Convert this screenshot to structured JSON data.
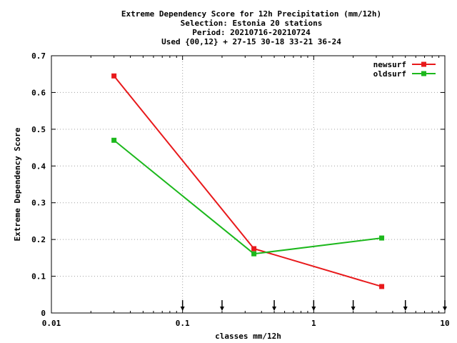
{
  "chart_data": {
    "type": "line",
    "title": [
      "Extreme Dependency Score  for 12h Precipitation (mm/12h)",
      "Selection: Estonia     20 stations",
      "Period: 20210716-20210724",
      "Used {00,12} + 27-15 30-18 33-21 36-24"
    ],
    "xlabel": "classes mm/12h",
    "ylabel": "Extreme Dependency Score",
    "x_scale": "log",
    "xlim": [
      0.01,
      10
    ],
    "ylim": [
      0,
      0.7
    ],
    "x_ticks": [
      0.01,
      0.1,
      1,
      10
    ],
    "x_tick_labels": [
      "0.01",
      "0.1",
      "1",
      "10"
    ],
    "y_ticks": [
      0,
      0.1,
      0.2,
      0.3,
      0.4,
      0.5,
      0.6,
      0.7
    ],
    "y_tick_labels": [
      "0",
      "0.1",
      "0.2",
      "0.3",
      "0.4",
      "0.5",
      "0.6",
      "0.7"
    ],
    "grid": true,
    "legend_position": "top-right",
    "threshold_markers": [
      0.1,
      0.2,
      0.5,
      1,
      2,
      5,
      10
    ],
    "series": [
      {
        "name": "newsurf",
        "color": "#e8191b",
        "x": [
          0.03,
          0.35,
          3.3
        ],
        "y": [
          0.645,
          0.175,
          0.072
        ]
      },
      {
        "name": "oldsurf",
        "color": "#1cb81c",
        "x": [
          0.03,
          0.35,
          3.3
        ],
        "y": [
          0.47,
          0.161,
          0.204
        ]
      }
    ]
  }
}
